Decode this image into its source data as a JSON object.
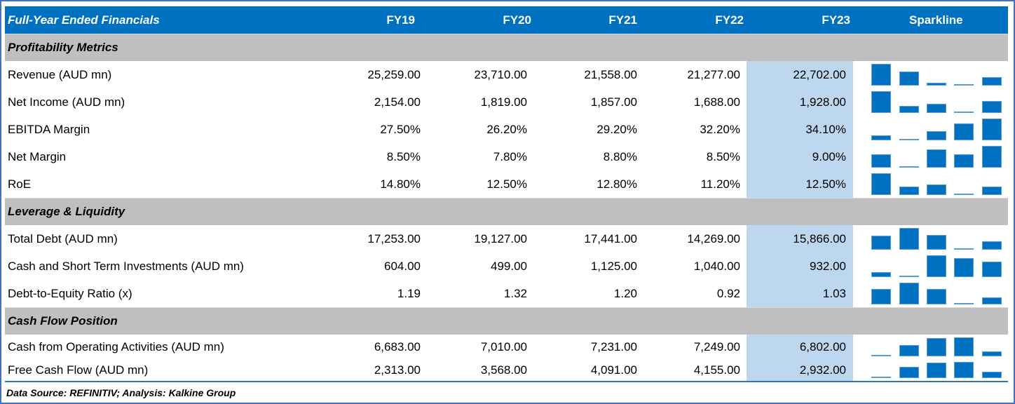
{
  "header": {
    "title": "Full-Year Ended Financials",
    "columns": [
      "FY19",
      "FY20",
      "FY21",
      "FY22",
      "FY23"
    ],
    "sparkline_label": "Sparkline"
  },
  "sections": [
    {
      "title": "Profitability Metrics",
      "rows": [
        {
          "label": "Revenue (AUD mn)",
          "values": [
            "25,259.00",
            "23,710.00",
            "21,558.00",
            "21,277.00",
            "22,702.00"
          ],
          "series": [
            25259,
            23710,
            21558,
            21277,
            22702
          ]
        },
        {
          "label": "Net Income (AUD mn)",
          "values": [
            "2,154.00",
            "1,819.00",
            "1,857.00",
            "1,688.00",
            "1,928.00"
          ],
          "series": [
            2154,
            1819,
            1857,
            1688,
            1928
          ]
        },
        {
          "label": "EBITDA Margin",
          "values": [
            "27.50%",
            "26.20%",
            "29.20%",
            "32.20%",
            "34.10%"
          ],
          "series": [
            27.5,
            26.2,
            29.2,
            32.2,
            34.1
          ]
        },
        {
          "label": "Net Margin",
          "values": [
            "8.50%",
            "7.80%",
            "8.80%",
            "8.50%",
            "9.00%"
          ],
          "series": [
            8.5,
            7.8,
            8.8,
            8.5,
            9.0
          ]
        },
        {
          "label": "RoE",
          "values": [
            "14.80%",
            "12.50%",
            "12.80%",
            "11.20%",
            "12.50%"
          ],
          "series": [
            14.8,
            12.5,
            12.8,
            11.2,
            12.5
          ]
        }
      ]
    },
    {
      "title": "Leverage & Liquidity",
      "rows": [
        {
          "label": "Total Debt (AUD mn)",
          "values": [
            "17,253.00",
            "19,127.00",
            "17,441.00",
            "14,269.00",
            "15,866.00"
          ],
          "series": [
            17253,
            19127,
            17441,
            14269,
            15866
          ]
        },
        {
          "label": "Cash and Short Term Investments (AUD mn)",
          "values": [
            "604.00",
            "499.00",
            "1,125.00",
            "1,040.00",
            "932.00"
          ],
          "series": [
            604,
            499,
            1125,
            1040,
            932
          ]
        },
        {
          "label": "Debt-to-Equity Ratio (x)",
          "values": [
            "1.19",
            "1.32",
            "1.20",
            "0.92",
            "1.03"
          ],
          "series": [
            1.19,
            1.32,
            1.2,
            0.92,
            1.03
          ]
        }
      ]
    },
    {
      "title": "Cash Flow Position",
      "rows": [
        {
          "label": "Cash from Operating Activities (AUD mn)",
          "values": [
            "6,683.00",
            "7,010.00",
            "7,231.00",
            "7,249.00",
            "6,802.00"
          ],
          "series": [
            6683,
            7010,
            7231,
            7249,
            6802
          ]
        },
        {
          "label": "Free Cash Flow (AUD mn)",
          "values": [
            "2,313.00",
            "3,568.00",
            "4,091.00",
            "4,155.00",
            "2,932.00"
          ],
          "series": [
            2313,
            3568,
            4091,
            4155,
            2932
          ]
        }
      ]
    }
  ],
  "footer": "Data Source: REFINITIV; Analysis: Kalkine Group",
  "colors": {
    "header": "#0070C0",
    "section": "#BFBFBF",
    "highlight": "#BDD7EE",
    "bar": "#0070C0",
    "frame": "#4472C4"
  }
}
